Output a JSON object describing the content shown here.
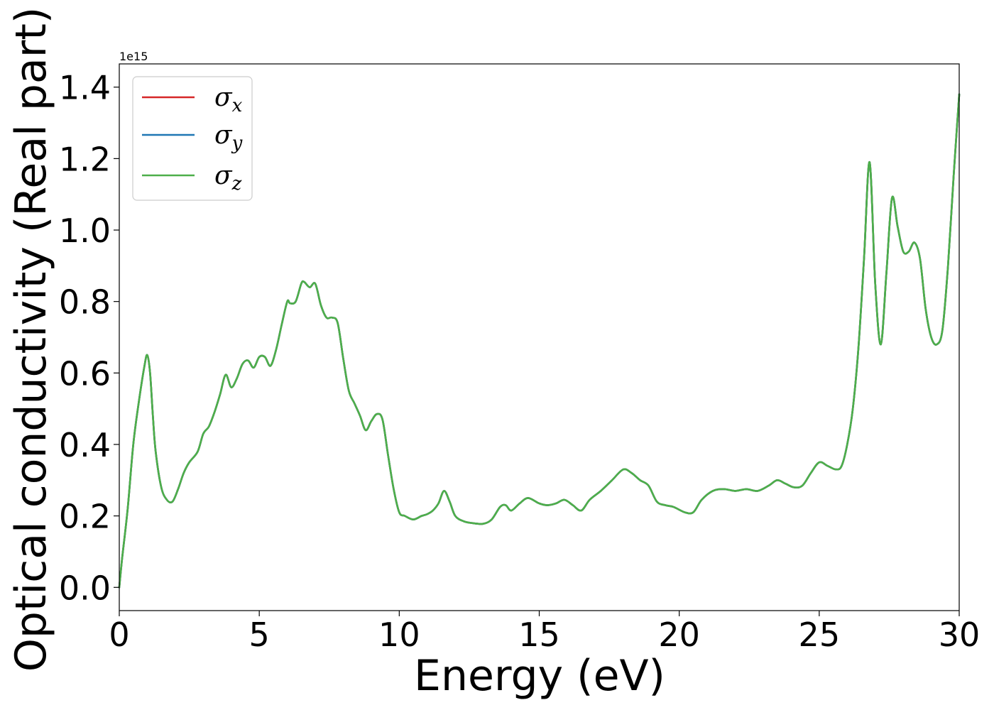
{
  "chart_data": {
    "type": "line",
    "xlabel": "Energy (eV)",
    "ylabel": "Optical conductivity (Real part)",
    "y_offset_label": "1e15",
    "xlim": [
      0,
      30
    ],
    "ylim": [
      -0.065,
      1.465
    ],
    "x_ticks": [
      0,
      5,
      10,
      15,
      20,
      25,
      30
    ],
    "x_tick_labels": [
      "0",
      "5",
      "10",
      "15",
      "20",
      "25",
      "30"
    ],
    "y_ticks": [
      0.0,
      0.2,
      0.4,
      0.6,
      0.8,
      1.0,
      1.2,
      1.4
    ],
    "y_tick_labels": [
      "0.0",
      "0.2",
      "0.4",
      "0.6",
      "0.8",
      "1.0",
      "1.2",
      "1.4"
    ],
    "grid": false,
    "legend_position": "top-left",
    "colors": {
      "sigma_x": "#d62728",
      "sigma_y": "#1f77b4",
      "sigma_z": "#4daf4a"
    },
    "x": [
      0.0,
      0.1,
      0.3,
      0.5,
      0.7,
      0.9,
      1.0,
      1.1,
      1.2,
      1.3,
      1.5,
      1.7,
      1.9,
      2.1,
      2.3,
      2.5,
      2.8,
      3.0,
      3.2,
      3.4,
      3.6,
      3.8,
      4.0,
      4.2,
      4.4,
      4.6,
      4.8,
      5.0,
      5.2,
      5.4,
      5.6,
      5.8,
      6.0,
      6.1,
      6.3,
      6.5,
      6.6,
      6.8,
      7.0,
      7.2,
      7.4,
      7.6,
      7.8,
      8.0,
      8.2,
      8.4,
      8.6,
      8.8,
      9.0,
      9.2,
      9.4,
      9.6,
      9.8,
      10.0,
      10.2,
      10.5,
      10.8,
      11.0,
      11.2,
      11.4,
      11.6,
      11.8,
      12.0,
      12.3,
      12.6,
      13.0,
      13.3,
      13.6,
      13.8,
      14.0,
      14.3,
      14.6,
      15.0,
      15.3,
      15.6,
      15.9,
      16.2,
      16.5,
      16.8,
      17.2,
      17.6,
      18.0,
      18.3,
      18.6,
      18.9,
      19.2,
      19.5,
      19.8,
      20.2,
      20.5,
      20.8,
      21.2,
      21.6,
      22.0,
      22.4,
      22.8,
      23.2,
      23.5,
      23.8,
      24.1,
      24.4,
      24.7,
      25.0,
      25.3,
      25.6,
      25.8,
      26.0,
      26.2,
      26.4,
      26.6,
      26.8,
      27.0,
      27.2,
      27.4,
      27.6,
      27.8,
      28.0,
      28.2,
      28.4,
      28.6,
      28.8,
      29.0,
      29.2,
      29.4,
      29.6,
      29.8,
      30.0
    ],
    "series": [
      {
        "name": "σx",
        "color": "#d62728",
        "values": [
          0.0,
          0.08,
          0.22,
          0.4,
          0.52,
          0.62,
          0.65,
          0.6,
          0.48,
          0.38,
          0.28,
          0.245,
          0.24,
          0.275,
          0.32,
          0.35,
          0.38,
          0.43,
          0.45,
          0.49,
          0.54,
          0.595,
          0.56,
          0.585,
          0.625,
          0.635,
          0.615,
          0.645,
          0.645,
          0.62,
          0.665,
          0.735,
          0.8,
          0.795,
          0.8,
          0.85,
          0.855,
          0.84,
          0.85,
          0.79,
          0.755,
          0.755,
          0.74,
          0.64,
          0.55,
          0.515,
          0.48,
          0.44,
          0.465,
          0.485,
          0.47,
          0.37,
          0.275,
          0.21,
          0.2,
          0.19,
          0.2,
          0.205,
          0.215,
          0.235,
          0.27,
          0.24,
          0.2,
          0.185,
          0.18,
          0.178,
          0.19,
          0.225,
          0.23,
          0.215,
          0.235,
          0.25,
          0.235,
          0.23,
          0.235,
          0.245,
          0.23,
          0.215,
          0.245,
          0.27,
          0.3,
          0.33,
          0.32,
          0.3,
          0.285,
          0.24,
          0.23,
          0.225,
          0.21,
          0.21,
          0.245,
          0.27,
          0.275,
          0.27,
          0.275,
          0.27,
          0.285,
          0.3,
          0.29,
          0.28,
          0.285,
          0.32,
          0.35,
          0.34,
          0.33,
          0.34,
          0.4,
          0.5,
          0.67,
          0.92,
          1.19,
          0.85,
          0.68,
          0.88,
          1.09,
          1.01,
          0.94,
          0.94,
          0.965,
          0.92,
          0.78,
          0.7,
          0.68,
          0.72,
          0.9,
          1.15,
          1.38
        ]
      },
      {
        "name": "σy",
        "color": "#1f77b4",
        "values": [
          0.0,
          0.08,
          0.22,
          0.4,
          0.52,
          0.62,
          0.65,
          0.6,
          0.48,
          0.38,
          0.28,
          0.245,
          0.24,
          0.275,
          0.32,
          0.35,
          0.38,
          0.43,
          0.45,
          0.49,
          0.54,
          0.595,
          0.56,
          0.585,
          0.625,
          0.635,
          0.615,
          0.645,
          0.645,
          0.62,
          0.665,
          0.735,
          0.8,
          0.795,
          0.8,
          0.85,
          0.855,
          0.84,
          0.85,
          0.79,
          0.755,
          0.755,
          0.74,
          0.64,
          0.55,
          0.515,
          0.48,
          0.44,
          0.465,
          0.485,
          0.47,
          0.37,
          0.275,
          0.21,
          0.2,
          0.19,
          0.2,
          0.205,
          0.215,
          0.235,
          0.27,
          0.24,
          0.2,
          0.185,
          0.18,
          0.178,
          0.19,
          0.225,
          0.23,
          0.215,
          0.235,
          0.25,
          0.235,
          0.23,
          0.235,
          0.245,
          0.23,
          0.215,
          0.245,
          0.27,
          0.3,
          0.33,
          0.32,
          0.3,
          0.285,
          0.24,
          0.23,
          0.225,
          0.21,
          0.21,
          0.245,
          0.27,
          0.275,
          0.27,
          0.275,
          0.27,
          0.285,
          0.3,
          0.29,
          0.28,
          0.285,
          0.32,
          0.35,
          0.34,
          0.33,
          0.34,
          0.4,
          0.5,
          0.67,
          0.92,
          1.19,
          0.85,
          0.68,
          0.88,
          1.09,
          1.01,
          0.94,
          0.94,
          0.965,
          0.92,
          0.78,
          0.7,
          0.68,
          0.72,
          0.9,
          1.15,
          1.38
        ]
      },
      {
        "name": "σz",
        "color": "#4daf4a",
        "values": [
          0.0,
          0.08,
          0.22,
          0.4,
          0.52,
          0.62,
          0.65,
          0.6,
          0.48,
          0.38,
          0.28,
          0.245,
          0.24,
          0.275,
          0.32,
          0.35,
          0.38,
          0.43,
          0.45,
          0.49,
          0.54,
          0.595,
          0.56,
          0.585,
          0.625,
          0.635,
          0.615,
          0.645,
          0.645,
          0.62,
          0.665,
          0.735,
          0.8,
          0.795,
          0.8,
          0.85,
          0.855,
          0.84,
          0.85,
          0.79,
          0.755,
          0.755,
          0.74,
          0.64,
          0.55,
          0.515,
          0.48,
          0.44,
          0.465,
          0.485,
          0.47,
          0.37,
          0.275,
          0.21,
          0.2,
          0.19,
          0.2,
          0.205,
          0.215,
          0.235,
          0.27,
          0.24,
          0.2,
          0.185,
          0.18,
          0.178,
          0.19,
          0.225,
          0.23,
          0.215,
          0.235,
          0.25,
          0.235,
          0.23,
          0.235,
          0.245,
          0.23,
          0.215,
          0.245,
          0.27,
          0.3,
          0.33,
          0.32,
          0.3,
          0.285,
          0.24,
          0.23,
          0.225,
          0.21,
          0.21,
          0.245,
          0.27,
          0.275,
          0.27,
          0.275,
          0.27,
          0.285,
          0.3,
          0.29,
          0.28,
          0.285,
          0.32,
          0.35,
          0.34,
          0.33,
          0.34,
          0.4,
          0.5,
          0.67,
          0.92,
          1.19,
          0.85,
          0.68,
          0.88,
          1.09,
          1.01,
          0.94,
          0.94,
          0.965,
          0.92,
          0.78,
          0.7,
          0.68,
          0.72,
          0.9,
          1.15,
          1.38
        ]
      }
    ],
    "legend": [
      {
        "base": "σ",
        "sub": "x",
        "color": "#d62728"
      },
      {
        "base": "σ",
        "sub": "y",
        "color": "#1f77b4"
      },
      {
        "base": "σ",
        "sub": "z",
        "color": "#4daf4a"
      }
    ]
  }
}
